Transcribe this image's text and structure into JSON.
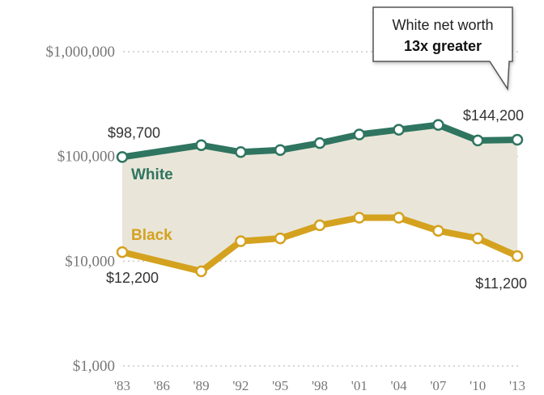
{
  "chart_data": {
    "type": "line",
    "scale": "log",
    "ylim": [
      1000,
      1000000
    ],
    "y_ticks": [
      {
        "value": 1000000,
        "label": "$1,000,000"
      },
      {
        "value": 100000,
        "label": "$100,000"
      },
      {
        "value": 10000,
        "label": "$10,000"
      },
      {
        "value": 1000,
        "label": "$1,000"
      }
    ],
    "categories": [
      "'83",
      "'86",
      "'89",
      "'92",
      "'95",
      "'98",
      "'01",
      "'04",
      "'07",
      "'10",
      "'13"
    ],
    "series": [
      {
        "name": "White",
        "color": "#2f7560",
        "values": [
          98700,
          null,
          128000,
          110000,
          115000,
          134000,
          162000,
          180000,
          200000,
          142000,
          144200
        ]
      },
      {
        "name": "Black",
        "color": "#d4a21f",
        "values": [
          12200,
          null,
          8000,
          15500,
          16500,
          22000,
          26000,
          26000,
          19500,
          16500,
          11200
        ]
      }
    ],
    "data_labels": [
      {
        "series": "White",
        "index": 0,
        "text": "$98,700"
      },
      {
        "series": "White",
        "index": 10,
        "text": "$144,200"
      },
      {
        "series": "Black",
        "index": 0,
        "text": "$12,200"
      },
      {
        "series": "Black",
        "index": 10,
        "text": "$11,200"
      }
    ],
    "callout": {
      "line1": "White net worth",
      "line2": "13x greater"
    },
    "gap_fill_color": "#e9e6d9"
  }
}
